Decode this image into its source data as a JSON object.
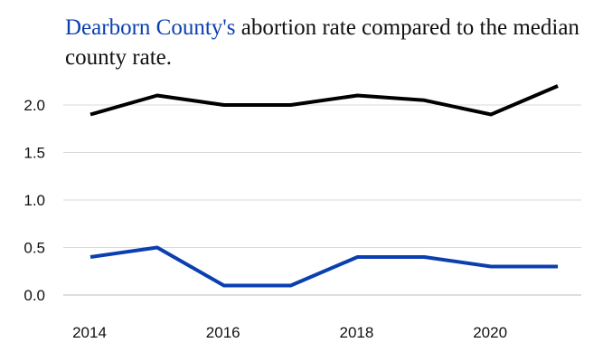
{
  "title": {
    "county": "Dearborn County's",
    "rest": " abortion rate compared to the median county rate."
  },
  "chart_data": {
    "type": "line",
    "title": "Dearborn County's abortion rate compared to the median county rate.",
    "xlabel": "",
    "ylabel": "",
    "x": [
      2014,
      2015,
      2016,
      2017,
      2018,
      2019,
      2020,
      2021
    ],
    "x_ticks": [
      2014,
      2016,
      2018,
      2020
    ],
    "x_tick_labels": [
      "2014",
      "2016",
      "2018",
      "2020"
    ],
    "y_ticks": [
      0,
      0.5,
      1,
      1.5,
      2
    ],
    "y_tick_labels": [
      "0.0",
      "0.5",
      "1.0",
      "1.5",
      "2.0"
    ],
    "xlim": [
      2014,
      2021
    ],
    "ylim": [
      0,
      2.2
    ],
    "grid": true,
    "series": [
      {
        "values": [
          1.9,
          2.1,
          2.0,
          2.0,
          2.1,
          2.05,
          1.9,
          2.2
        ],
        "color": "#000000"
      },
      {
        "values": [
          0.4,
          0.5,
          0.1,
          0.1,
          0.4,
          0.4,
          0.3,
          0.3
        ],
        "color": "#0b3fb0"
      }
    ]
  }
}
